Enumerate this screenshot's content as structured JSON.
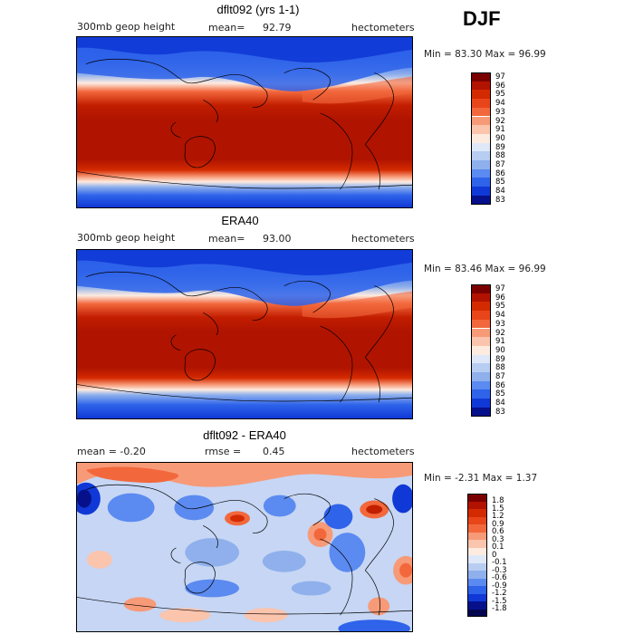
{
  "season": "DJF",
  "panels": [
    {
      "title": "dflt092 (yrs 1-1)",
      "left_label": "300mb geop height",
      "mean_label": "mean=",
      "mean_value": "92.79",
      "units": "hectometers",
      "minmax": "Min =  83.30 Max =  96.99",
      "colorbar_labels": [
        "97",
        "96",
        "95",
        "94",
        "93",
        "92",
        "91",
        "90",
        "89",
        "88",
        "87",
        "86",
        "85",
        "84",
        "83"
      ],
      "colorbar_colors": [
        "#7a0000",
        "#b21200",
        "#d42a00",
        "#e8461a",
        "#f2683c",
        "#f79a78",
        "#fbc4ad",
        "#fdebe0",
        "#dfe8f8",
        "#b8cdf2",
        "#8fb0ec",
        "#5b8af0",
        "#2e63ea",
        "#1038d6",
        "#06108a"
      ]
    },
    {
      "title": "ERA40",
      "left_label": "300mb geop height",
      "mean_label": "mean=",
      "mean_value": "93.00",
      "units": "hectometers",
      "minmax": "Min =  83.46 Max =  96.99",
      "colorbar_labels": [
        "97",
        "96",
        "95",
        "94",
        "93",
        "92",
        "91",
        "90",
        "89",
        "88",
        "87",
        "86",
        "85",
        "84",
        "83"
      ],
      "colorbar_colors": [
        "#7a0000",
        "#b21200",
        "#d42a00",
        "#e8461a",
        "#f2683c",
        "#f79a78",
        "#fbc4ad",
        "#fdebe0",
        "#dfe8f8",
        "#b8cdf2",
        "#8fb0ec",
        "#5b8af0",
        "#2e63ea",
        "#1038d6",
        "#06108a"
      ]
    },
    {
      "title": "dflt092 - ERA40",
      "left_label": "mean =  -0.20",
      "mean_label": "rmse =",
      "mean_value": "0.45",
      "units": "hectometers",
      "minmax": "Min =  -2.31 Max =   1.37",
      "colorbar_labels": [
        "1.8",
        "1.5",
        "1.2",
        "0.9",
        "0.6",
        "0.3",
        "0.1",
        "0",
        "-0.1",
        "-0.3",
        "-0.6",
        "-0.9",
        "-1.2",
        "-1.5",
        "-1.8"
      ],
      "colorbar_colors": [
        "#7a0000",
        "#b21200",
        "#d42a00",
        "#e8461a",
        "#f2683c",
        "#f79a78",
        "#fbc4ad",
        "#fdebe0",
        "#dfe8f8",
        "#b8cdf2",
        "#8fb0ec",
        "#5b8af0",
        "#2e63ea",
        "#1038d6",
        "#06108a",
        "#03064f"
      ]
    }
  ]
}
